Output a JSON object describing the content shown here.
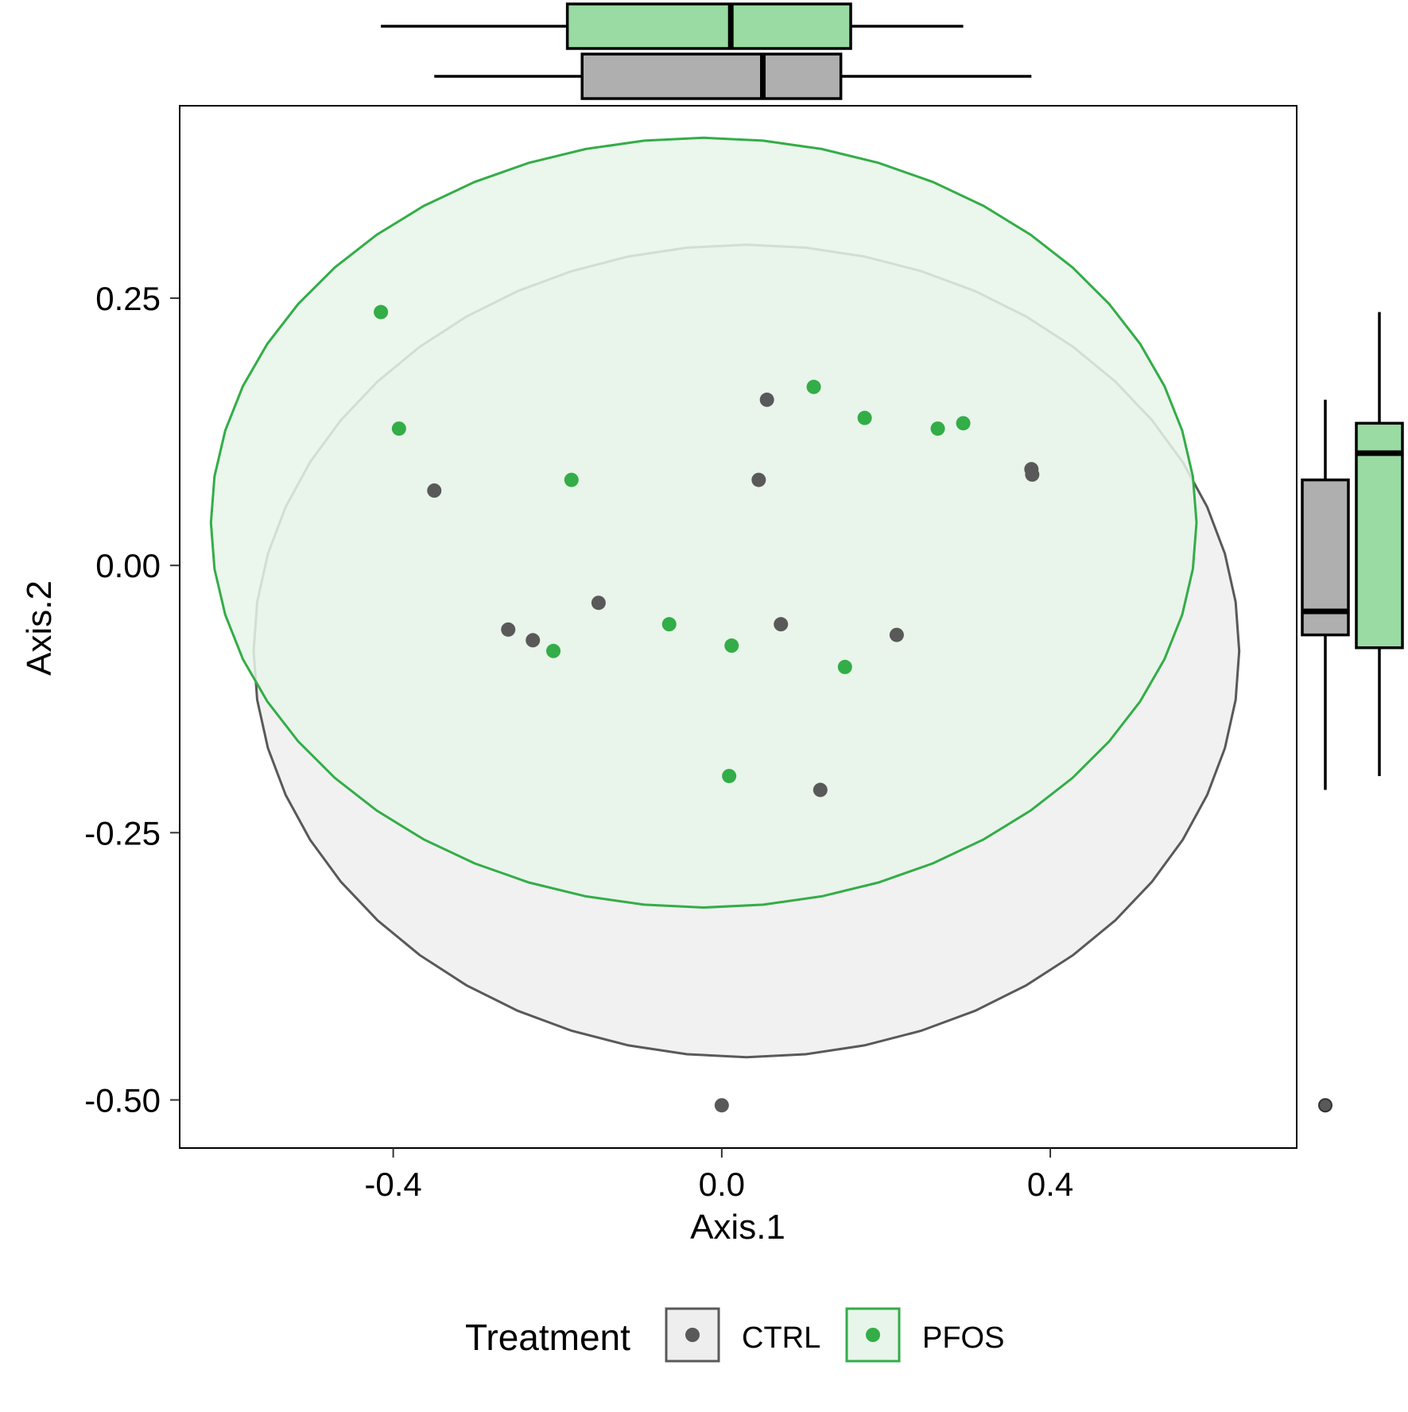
{
  "chart_data": {
    "type": "scatter",
    "xlabel": "Axis.1",
    "ylabel": "Axis.2",
    "xlim": [
      -0.66,
      0.7
    ],
    "ylim": [
      -0.545,
      0.43
    ],
    "xticks": [
      -0.4,
      0.0,
      0.4
    ],
    "xtick_labels": [
      "-0.4",
      "0.0",
      "0.4"
    ],
    "yticks": [
      -0.5,
      -0.25,
      0.0,
      0.25
    ],
    "ytick_labels": [
      "-0.50",
      "-0.25",
      "0.00",
      "0.25"
    ],
    "grid": false,
    "legend": {
      "title": "Treatment",
      "position": "bottom",
      "entries": [
        "CTRL",
        "PFOS"
      ]
    },
    "series": [
      {
        "name": "CTRL",
        "color": "#595959",
        "ellipse_fill": "#EEEEEE",
        "box_fill": "#AFAFAF",
        "points": [
          [
            -0.35,
            0.07
          ],
          [
            -0.26,
            -0.06
          ],
          [
            -0.23,
            -0.07
          ],
          [
            -0.15,
            -0.035
          ],
          [
            0.0,
            -0.505
          ],
          [
            0.045,
            0.08
          ],
          [
            0.055,
            0.155
          ],
          [
            0.072,
            -0.055
          ],
          [
            0.12,
            -0.21
          ],
          [
            0.213,
            -0.065
          ],
          [
            0.377,
            0.09
          ],
          [
            0.378,
            0.085
          ]
        ],
        "ellipse": {
          "cx": 0.03,
          "cy": -0.08,
          "a": 0.6,
          "b": 0.38,
          "angle_deg": 0
        },
        "box_x": {
          "min": -0.35,
          "q1": -0.17,
          "median": 0.05,
          "q3": 0.145,
          "max": 0.377
        },
        "box_y": {
          "min": -0.21,
          "q1": -0.065,
          "median": -0.043,
          "q3": 0.08,
          "max": 0.155,
          "outliers": [
            -0.505
          ]
        }
      },
      {
        "name": "PFOS",
        "color": "#33AD47",
        "ellipse_fill": "#E8F5EA",
        "box_fill": "#99DBA3",
        "points": [
          [
            -0.415,
            0.237
          ],
          [
            -0.393,
            0.128
          ],
          [
            -0.205,
            -0.08
          ],
          [
            -0.183,
            0.08
          ],
          [
            -0.064,
            -0.055
          ],
          [
            0.009,
            -0.197
          ],
          [
            0.012,
            -0.075
          ],
          [
            0.112,
            0.167
          ],
          [
            0.15,
            -0.095
          ],
          [
            0.174,
            0.138
          ],
          [
            0.263,
            0.128
          ],
          [
            0.294,
            0.133
          ]
        ],
        "ellipse": {
          "cx": -0.022,
          "cy": 0.04,
          "a": 0.6,
          "b": 0.36,
          "angle_deg": 0
        },
        "box_x": {
          "min": -0.415,
          "q1": -0.188,
          "median": 0.011,
          "q3": 0.157,
          "max": 0.294
        },
        "box_y": {
          "min": -0.197,
          "q1": -0.077,
          "median": 0.105,
          "q3": 0.133,
          "max": 0.237
        }
      }
    ]
  }
}
